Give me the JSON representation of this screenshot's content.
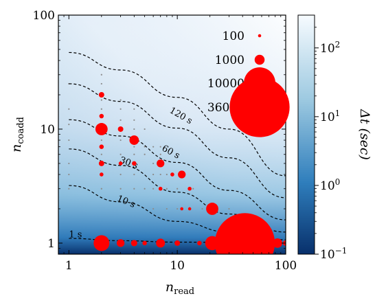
{
  "chart_data": {
    "type": "scatter",
    "title": "",
    "xlabel": "n_read",
    "ylabel": "n_coadd",
    "x_scale": "log",
    "y_scale": "log",
    "xlim": [
      0.8,
      100
    ],
    "ylim": [
      0.8,
      100
    ],
    "x_ticks": [
      {
        "value": 1,
        "label": "1"
      },
      {
        "value": 10,
        "label": "10"
      },
      {
        "value": 100,
        "label": "100"
      }
    ],
    "y_ticks": [
      {
        "value": 1,
        "label": "1"
      },
      {
        "value": 10,
        "label": "10"
      },
      {
        "value": 100,
        "label": "100"
      }
    ],
    "colorbar": {
      "label": "Δt (sec)",
      "scale": "log",
      "range": [
        0.1,
        300
      ],
      "ticks": [
        {
          "value": 0.1,
          "label": "10",
          "exp": "−1"
        },
        {
          "value": 1,
          "label": "10",
          "exp": "0"
        },
        {
          "value": 10,
          "label": "10",
          "exp": "1"
        },
        {
          "value": 100,
          "label": "10",
          "exp": "2"
        }
      ],
      "colors": [
        "#08306b",
        "#2f7ebc",
        "#9ecae1",
        "#f7fbff"
      ]
    },
    "contours": [
      {
        "label": "1 s",
        "points": [
          [
            1,
            1.1
          ],
          [
            3,
            1.05
          ],
          [
            10,
            1.02
          ],
          [
            100,
            1.0
          ]
        ]
      },
      {
        "label": "10 s",
        "points": [
          [
            1,
            3.2
          ],
          [
            3,
            2.3
          ],
          [
            10,
            1.55
          ],
          [
            30,
            1.25
          ],
          [
            100,
            1.07
          ]
        ]
      },
      {
        "label": "30 s",
        "points": [
          [
            1,
            6.7
          ],
          [
            3,
            4.8
          ],
          [
            10,
            2.8
          ],
          [
            30,
            1.8
          ],
          [
            100,
            1.25
          ]
        ]
      },
      {
        "label": "60 s",
        "points": [
          [
            1,
            12.1
          ],
          [
            3,
            8.7
          ],
          [
            10,
            5.1
          ],
          [
            30,
            2.9
          ],
          [
            100,
            1.6
          ]
        ]
      },
      {
        "label": "120 s",
        "points": [
          [
            1,
            25
          ],
          [
            3,
            17.5
          ],
          [
            10,
            10.2
          ],
          [
            30,
            5.6
          ],
          [
            100,
            2.5
          ]
        ]
      },
      {
        "label": "",
        "points": [
          [
            1,
            47
          ],
          [
            3,
            33
          ],
          [
            10,
            19
          ],
          [
            30,
            10
          ],
          [
            100,
            3.9
          ]
        ]
      }
    ],
    "marker_color": "#ff0000",
    "legend": {
      "placement": "top-right",
      "entries": [
        {
          "label": "100",
          "count": 100
        },
        {
          "label": "1000",
          "count": 1000
        },
        {
          "label": "10000",
          "count": 10000
        },
        {
          "label": "36000",
          "count": 36000
        }
      ]
    },
    "points": [
      {
        "x": 2,
        "y": 20,
        "count": 300
      },
      {
        "x": 2,
        "y": 13,
        "count": 200
      },
      {
        "x": 2,
        "y": 10,
        "count": 1500
      },
      {
        "x": 2,
        "y": 7,
        "count": 200
      },
      {
        "x": 2,
        "y": 5,
        "count": 300
      },
      {
        "x": 2,
        "y": 4,
        "count": 150
      },
      {
        "x": 2,
        "y": 1,
        "count": 2500
      },
      {
        "x": 3,
        "y": 10,
        "count": 300
      },
      {
        "x": 3,
        "y": 5,
        "count": 150
      },
      {
        "x": 3,
        "y": 1,
        "count": 600
      },
      {
        "x": 4,
        "y": 8,
        "count": 900
      },
      {
        "x": 4,
        "y": 5,
        "count": 200
      },
      {
        "x": 4,
        "y": 1,
        "count": 400
      },
      {
        "x": 5,
        "y": 1,
        "count": 200
      },
      {
        "x": 7,
        "y": 5,
        "count": 600
      },
      {
        "x": 7,
        "y": 3,
        "count": 150
      },
      {
        "x": 7,
        "y": 1,
        "count": 800
      },
      {
        "x": 9,
        "y": 4,
        "count": 150
      },
      {
        "x": 10,
        "y": 1,
        "count": 300
      },
      {
        "x": 11,
        "y": 4,
        "count": 600
      },
      {
        "x": 11,
        "y": 2,
        "count": 100
      },
      {
        "x": 13,
        "y": 3,
        "count": 150
      },
      {
        "x": 13,
        "y": 2,
        "count": 100
      },
      {
        "x": 16,
        "y": 1,
        "count": 200
      },
      {
        "x": 21,
        "y": 2,
        "count": 1500
      },
      {
        "x": 21,
        "y": 1,
        "count": 2000
      },
      {
        "x": 30,
        "y": 1,
        "count": 600
      },
      {
        "x": 35,
        "y": 1,
        "count": 400
      },
      {
        "x": 42,
        "y": 1,
        "count": 36000
      },
      {
        "x": 62,
        "y": 1,
        "count": 2500
      },
      {
        "x": 84,
        "y": 1,
        "count": 900
      },
      {
        "x": 100,
        "y": 1,
        "count": 300
      }
    ],
    "grid_points": [
      [
        1,
        3
      ],
      [
        1,
        4
      ],
      [
        1,
        5
      ],
      [
        1,
        8
      ],
      [
        1,
        11
      ],
      [
        1,
        15
      ],
      [
        1,
        25
      ],
      [
        2,
        3
      ],
      [
        2,
        4
      ],
      [
        2,
        6
      ],
      [
        2,
        8
      ],
      [
        2,
        11
      ],
      [
        2,
        15
      ],
      [
        2,
        18
      ],
      [
        2,
        25
      ],
      [
        2,
        30
      ],
      [
        3,
        3
      ],
      [
        3,
        4
      ],
      [
        3,
        6
      ],
      [
        3,
        8
      ],
      [
        3,
        12
      ],
      [
        3,
        15
      ],
      [
        3,
        18
      ],
      [
        4,
        3
      ],
      [
        4,
        4
      ],
      [
        4,
        6
      ],
      [
        4,
        7
      ],
      [
        4,
        10
      ],
      [
        4,
        12
      ],
      [
        4,
        15
      ],
      [
        5,
        3
      ],
      [
        5,
        6
      ],
      [
        5,
        7
      ],
      [
        5,
        10
      ],
      [
        6,
        2
      ],
      [
        6,
        3
      ],
      [
        6,
        4
      ],
      [
        6,
        5
      ],
      [
        6,
        7
      ],
      [
        7,
        4
      ],
      [
        7,
        6
      ],
      [
        7,
        7
      ],
      [
        8,
        2
      ],
      [
        8,
        3
      ],
      [
        8,
        4
      ],
      [
        10,
        2
      ],
      [
        10,
        3
      ],
      [
        14,
        3
      ],
      [
        17,
        2
      ],
      [
        20,
        2
      ],
      [
        30,
        2
      ]
    ]
  }
}
